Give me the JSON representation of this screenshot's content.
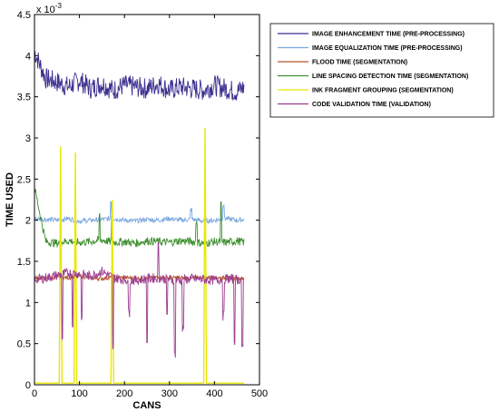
{
  "chart_data": {
    "type": "line",
    "title": "",
    "xlabel": "CANS",
    "ylabel": "TIME USED",
    "scale_note": "x 10",
    "scale_exp": "-3",
    "xlim": [
      0,
      500
    ],
    "ylim": [
      0,
      4.5
    ],
    "xticks": [
      "0",
      "100",
      "200",
      "300",
      "400",
      "500"
    ],
    "yticks": [
      "0",
      "0.5",
      "1",
      "1.5",
      "2",
      "2.5",
      "3",
      "3.5",
      "4",
      "4.5"
    ],
    "legend_position": "top-right",
    "series": [
      {
        "name": "IMAGE ENHANCEMENT TIME (PRE-PROCESSING)",
        "color": "#3b2f8f",
        "x": [
          0,
          25,
          50,
          75,
          100,
          125,
          150,
          175,
          200,
          225,
          250,
          275,
          300,
          325,
          350,
          375,
          400,
          425,
          450,
          466
        ],
        "y": [
          4.05,
          3.72,
          3.68,
          3.62,
          3.7,
          3.6,
          3.66,
          3.58,
          3.64,
          3.62,
          3.6,
          3.66,
          3.58,
          3.62,
          3.6,
          3.58,
          3.64,
          3.6,
          3.56,
          3.62
        ]
      },
      {
        "name": "IMAGE EQUALIZATION TIME (PRE-PROCESSING)",
        "color": "#7aa7e0",
        "x": [
          0,
          25,
          50,
          75,
          100,
          125,
          150,
          175,
          200,
          225,
          250,
          275,
          300,
          325,
          350,
          375,
          400,
          425,
          450,
          466
        ],
        "y": [
          2.02,
          2.01,
          2.0,
          2.02,
          1.99,
          2.0,
          2.01,
          2.02,
          2.0,
          1.99,
          2.01,
          2.0,
          2.02,
          2.0,
          2.01,
          1.99,
          2.0,
          2.02,
          2.0,
          2.01
        ]
      },
      {
        "name": "FLOOD TIME (SEGMENTATION)",
        "color": "#b5572a",
        "x": [
          0,
          25,
          50,
          75,
          100,
          125,
          150,
          175,
          200,
          225,
          250,
          275,
          300,
          325,
          350,
          375,
          400,
          425,
          450,
          466
        ],
        "y": [
          1.3,
          1.29,
          1.31,
          1.3,
          1.32,
          1.3,
          1.29,
          1.31,
          1.3,
          1.3,
          1.29,
          1.31,
          1.3,
          1.3,
          1.29,
          1.31,
          1.3,
          1.3,
          1.29,
          1.3
        ]
      },
      {
        "name": "LINE SPACING DETECTION TIME (SEGMENTATION)",
        "color": "#3e8f2f",
        "x": [
          0,
          25,
          50,
          75,
          100,
          125,
          150,
          175,
          200,
          225,
          250,
          275,
          300,
          325,
          350,
          375,
          400,
          425,
          450,
          466
        ],
        "y": [
          2.4,
          1.74,
          1.72,
          1.75,
          1.73,
          1.74,
          1.76,
          1.73,
          1.74,
          1.72,
          1.75,
          1.74,
          1.73,
          1.75,
          1.74,
          1.72,
          1.74,
          1.73,
          1.75,
          1.73
        ]
      },
      {
        "name": "INK FRAGMENT GROUPING (SEGMENTATION)",
        "color": "#e8e800",
        "x": [
          0,
          55,
          58,
          61,
          64,
          88,
          91,
          94,
          170,
          173,
          176,
          376,
          379,
          382,
          385,
          466
        ],
        "y": [
          0.02,
          0.02,
          2.9,
          0.02,
          0.02,
          0.02,
          2.82,
          0.02,
          0.02,
          2.25,
          0.02,
          0.02,
          3.12,
          0.02,
          0.02,
          0.02
        ]
      },
      {
        "name": "CODE VALIDATION TIME (VALIDATION)",
        "color": "#9b3b8f",
        "x": [
          0,
          25,
          50,
          75,
          100,
          125,
          150,
          175,
          200,
          225,
          250,
          275,
          300,
          325,
          350,
          375,
          400,
          425,
          450,
          466
        ],
        "y": [
          1.28,
          1.3,
          1.33,
          1.36,
          1.35,
          1.32,
          1.38,
          1.3,
          1.28,
          1.27,
          1.29,
          1.3,
          1.28,
          1.27,
          1.29,
          1.28,
          1.27,
          1.29,
          1.28,
          1.27
        ]
      }
    ]
  }
}
